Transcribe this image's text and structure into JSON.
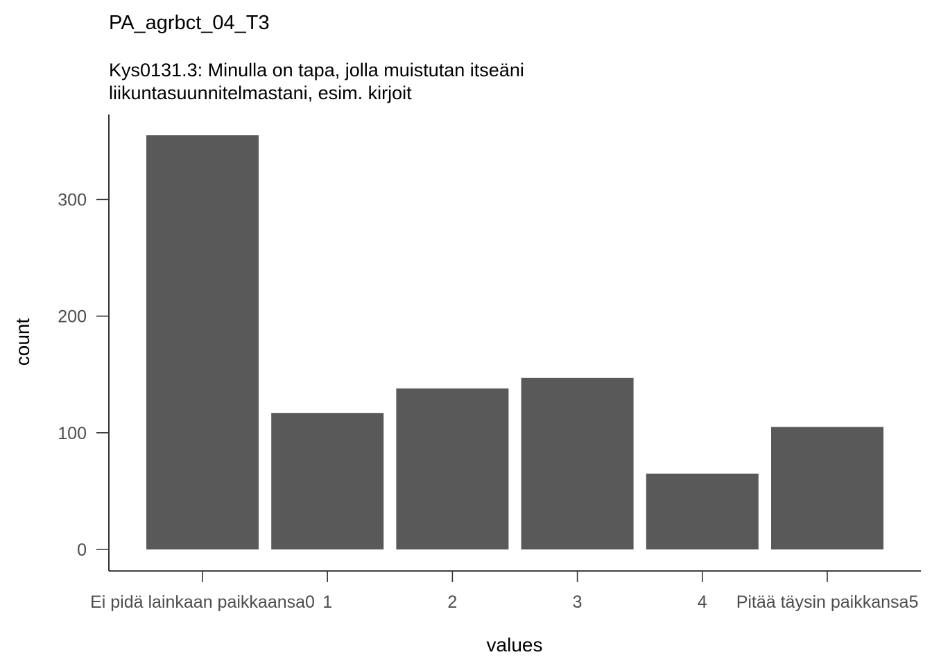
{
  "chart_data": {
    "type": "bar",
    "title": "PA_agrbct_04_T3",
    "subtitle_lines": [
      "Kys0131.3: Minulla on tapa, jolla muistutan itseäni",
      "liikuntasuunnitelmastani, esim. kirjoit"
    ],
    "xlabel": "values",
    "ylabel": "count",
    "categories": [
      "Ei pidä lainkaan paikkaansa0",
      "1",
      "2",
      "3",
      "4",
      "Pitää täysin paikkansa5"
    ],
    "values": [
      355,
      117,
      138,
      147,
      65,
      105
    ],
    "ylim": [
      0,
      372
    ],
    "yticks": [
      0,
      100,
      200,
      300
    ],
    "bar_color": "#595959",
    "grid": false,
    "legend": "none"
  }
}
